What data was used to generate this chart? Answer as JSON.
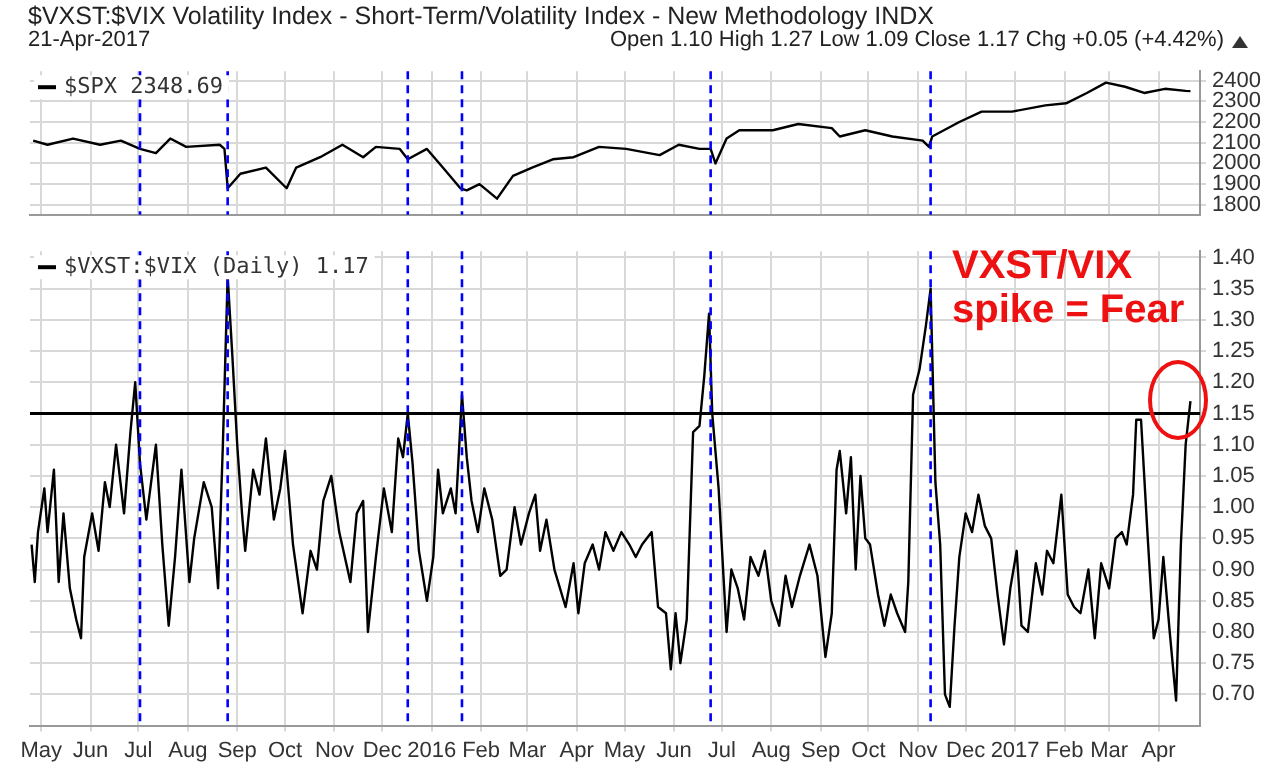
{
  "chart_data": [
    {
      "type": "line",
      "title": "$VXST:$VIX Volatility Index - Short-Term/Volatility Index - New Methodology INDX",
      "subtitle": "21-Apr-2017",
      "annotations": [
        "Open 1.10 High 1.27 Low 1.09 Close 1.17 Chg +0.05 (+4.42%)"
      ],
      "series": [
        {
          "name": "$SPX 2348.69",
          "color": "#000000",
          "x": [
            "2015-04-26",
            "2015-05-05",
            "2015-05-21",
            "2015-06-07",
            "2015-06-20",
            "2015-07-02",
            "2015-07-12",
            "2015-07-21",
            "2015-07-31",
            "2015-08-21",
            "2015-08-24",
            "2015-08-26",
            "2015-09-03",
            "2015-09-19",
            "2015-10-02",
            "2015-10-08",
            "2015-10-23",
            "2015-11-06",
            "2015-11-19",
            "2015-11-27",
            "2015-12-12",
            "2015-12-17",
            "2015-12-29",
            "2016-01-08",
            "2016-01-19",
            "2016-01-23",
            "2016-01-31",
            "2016-02-11",
            "2016-02-21",
            "2016-03-04",
            "2016-03-17",
            "2016-03-30",
            "2016-04-15",
            "2016-05-02",
            "2016-05-23",
            "2016-06-04",
            "2016-06-17",
            "2016-06-24",
            "2016-06-27",
            "2016-07-04",
            "2016-07-12",
            "2016-08-02",
            "2016-08-18",
            "2016-09-08",
            "2016-09-13",
            "2016-09-29",
            "2016-10-16",
            "2016-11-04",
            "2016-11-08",
            "2016-11-10",
            "2016-11-27",
            "2016-12-11",
            "2016-12-30",
            "2017-01-20",
            "2017-02-02",
            "2017-02-15",
            "2017-02-27",
            "2017-03-11",
            "2017-03-23",
            "2017-04-05",
            "2017-04-18",
            "2017-04-21"
          ],
          "values": [
            2110,
            2090,
            2120,
            2090,
            2110,
            2070,
            2050,
            2120,
            2080,
            2090,
            2070,
            1880,
            1950,
            1980,
            1880,
            1980,
            2030,
            2090,
            2030,
            2080,
            2070,
            2020,
            2070,
            1980,
            1880,
            1870,
            1900,
            1830,
            1940,
            1980,
            2020,
            2030,
            2080,
            2070,
            2040,
            2090,
            2070,
            2070,
            2000,
            2120,
            2160,
            2160,
            2190,
            2170,
            2130,
            2160,
            2130,
            2110,
            2080,
            2130,
            2200,
            2250,
            2250,
            2280,
            2290,
            2340,
            2390,
            2370,
            2340,
            2360,
            2350,
            2348.69
          ]
        }
      ],
      "xlim": [
        "2015-04-24",
        "2017-04-27"
      ],
      "xticks": [
        {
          "value": "2015-05-01",
          "label": null
        },
        {
          "value": "2015-06-01",
          "label": null
        },
        {
          "value": "2015-07-01",
          "label": null
        },
        {
          "value": "2015-08-01",
          "label": null
        },
        {
          "value": "2015-09-01",
          "label": null
        },
        {
          "value": "2015-10-01",
          "label": null
        },
        {
          "value": "2015-11-01",
          "label": null
        },
        {
          "value": "2015-12-01",
          "label": null
        },
        {
          "value": "2016-01-01",
          "label": null
        },
        {
          "value": "2016-02-01",
          "label": null
        },
        {
          "value": "2016-03-01",
          "label": null
        },
        {
          "value": "2016-04-01",
          "label": null
        },
        {
          "value": "2016-05-01",
          "label": null
        },
        {
          "value": "2016-06-01",
          "label": null
        },
        {
          "value": "2016-07-01",
          "label": null
        },
        {
          "value": "2016-08-01",
          "label": null
        },
        {
          "value": "2016-09-01",
          "label": null
        },
        {
          "value": "2016-10-01",
          "label": null
        },
        {
          "value": "2016-11-01",
          "label": null
        },
        {
          "value": "2016-12-01",
          "label": null
        },
        {
          "value": "2017-01-01",
          "label": null
        },
        {
          "value": "2017-02-01",
          "label": null
        },
        {
          "value": "2017-03-01",
          "label": null
        },
        {
          "value": "2017-04-01",
          "label": null
        }
      ],
      "ylim": [
        1752,
        2445
      ],
      "yticks": [
        1800,
        1900,
        2000,
        2100,
        2200,
        2300,
        2400
      ],
      "tick_labels": "y",
      "grid": true,
      "legend": "top left",
      "ref_lines": [
        {
          "axis": "x",
          "value": "2015-07-02",
          "color": "#0000ff",
          "line_style": "dashed"
        },
        {
          "axis": "x",
          "value": "2015-08-26",
          "color": "#0000ff",
          "line_style": "dashed"
        },
        {
          "axis": "x",
          "value": "2015-12-17",
          "color": "#0000ff",
          "line_style": "dashed"
        },
        {
          "axis": "x",
          "value": "2016-01-20",
          "color": "#0000ff",
          "line_style": "dashed"
        },
        {
          "axis": "x",
          "value": "2016-06-24",
          "color": "#0000ff",
          "line_style": "dashed"
        },
        {
          "axis": "x",
          "value": "2016-11-09",
          "color": "#0000ff",
          "line_style": "dashed"
        }
      ]
    },
    {
      "type": "line",
      "annotations": [
        "VXST/VIX spike = Fear"
      ],
      "series": [
        {
          "name": "$VXST:$VIX (Daily) 1.17",
          "color": "#000000",
          "x": [
            "2015-04-25",
            "2015-04-27",
            "2015-04-29",
            "2015-05-03",
            "2015-05-05",
            "2015-05-09",
            "2015-05-12",
            "2015-05-15",
            "2015-05-19",
            "2015-05-23",
            "2015-05-26",
            "2015-05-28",
            "2015-06-02",
            "2015-06-06",
            "2015-06-10",
            "2015-06-13",
            "2015-06-17",
            "2015-06-22",
            "2015-06-26",
            "2015-06-29",
            "2015-07-02",
            "2015-07-06",
            "2015-07-12",
            "2015-07-16",
            "2015-07-20",
            "2015-07-24",
            "2015-07-28",
            "2015-08-02",
            "2015-08-05",
            "2015-08-11",
            "2015-08-16",
            "2015-08-20",
            "2015-08-23",
            "2015-08-26",
            "2015-08-29",
            "2015-09-01",
            "2015-09-04",
            "2015-09-06",
            "2015-09-11",
            "2015-09-15",
            "2015-09-19",
            "2015-09-24",
            "2015-09-28",
            "2015-10-01",
            "2015-10-06",
            "2015-10-12",
            "2015-10-17",
            "2015-10-21",
            "2015-10-25",
            "2015-10-30",
            "2015-11-04",
            "2015-11-11",
            "2015-11-15",
            "2015-11-19",
            "2015-11-22",
            "2015-11-27",
            "2015-12-02",
            "2015-12-07",
            "2015-12-11",
            "2015-12-14",
            "2015-12-17",
            "2015-12-20",
            "2015-12-24",
            "2015-12-29",
            "2016-01-02",
            "2016-01-05",
            "2016-01-08",
            "2016-01-13",
            "2016-01-16",
            "2016-01-20",
            "2016-01-23",
            "2016-01-26",
            "2016-01-30",
            "2016-02-03",
            "2016-02-08",
            "2016-02-13",
            "2016-02-17",
            "2016-02-22",
            "2016-02-26",
            "2016-03-02",
            "2016-03-06",
            "2016-03-09",
            "2016-03-13",
            "2016-03-18",
            "2016-03-25",
            "2016-03-30",
            "2016-04-02",
            "2016-04-06",
            "2016-04-11",
            "2016-04-15",
            "2016-04-19",
            "2016-04-24",
            "2016-04-29",
            "2016-05-04",
            "2016-05-08",
            "2016-05-12",
            "2016-05-18",
            "2016-05-22",
            "2016-05-27",
            "2016-05-30",
            "2016-06-02",
            "2016-06-05",
            "2016-06-09",
            "2016-06-13",
            "2016-06-17",
            "2016-06-20",
            "2016-06-23",
            "2016-06-25",
            "2016-06-29",
            "2016-07-04",
            "2016-07-07",
            "2016-07-11",
            "2016-07-15",
            "2016-07-19",
            "2016-07-24",
            "2016-07-28",
            "2016-08-01",
            "2016-08-06",
            "2016-08-10",
            "2016-08-14",
            "2016-08-19",
            "2016-08-25",
            "2016-08-30",
            "2016-09-04",
            "2016-09-08",
            "2016-09-11",
            "2016-09-13",
            "2016-09-17",
            "2016-09-20",
            "2016-09-23",
            "2016-09-26",
            "2016-09-29",
            "2016-10-02",
            "2016-10-07",
            "2016-10-11",
            "2016-10-15",
            "2016-10-19",
            "2016-10-24",
            "2016-10-26",
            "2016-10-29",
            "2016-11-02",
            "2016-11-06",
            "2016-11-09",
            "2016-11-12",
            "2016-11-15",
            "2016-11-18",
            "2016-11-21",
            "2016-11-24",
            "2016-11-27",
            "2016-12-01",
            "2016-12-05",
            "2016-12-09",
            "2016-12-13",
            "2016-12-17",
            "2016-12-21",
            "2016-12-25",
            "2016-12-29",
            "2017-01-02",
            "2017-01-05",
            "2017-01-09",
            "2017-01-14",
            "2017-01-18",
            "2017-01-21",
            "2017-01-25",
            "2017-01-30",
            "2017-02-03",
            "2017-02-07",
            "2017-02-11",
            "2017-02-16",
            "2017-02-20",
            "2017-02-24",
            "2017-03-01",
            "2017-03-05",
            "2017-03-09",
            "2017-03-12",
            "2017-03-16",
            "2017-03-18",
            "2017-03-21",
            "2017-03-25",
            "2017-03-29",
            "2017-04-01",
            "2017-04-04",
            "2017-04-08",
            "2017-04-12",
            "2017-04-15",
            "2017-04-18",
            "2017-04-21"
          ],
          "values": [
            0.94,
            0.88,
            0.96,
            1.03,
            0.96,
            1.06,
            0.88,
            0.99,
            0.87,
            0.82,
            0.79,
            0.92,
            0.99,
            0.93,
            1.04,
            1.0,
            1.1,
            0.99,
            1.12,
            1.2,
            1.07,
            0.98,
            1.1,
            0.94,
            0.81,
            0.92,
            1.06,
            0.88,
            0.95,
            1.04,
            1.0,
            0.87,
            1.1,
            1.37,
            1.24,
            1.1,
            0.99,
            0.93,
            1.06,
            1.02,
            1.11,
            0.98,
            1.03,
            1.09,
            0.94,
            0.83,
            0.93,
            0.9,
            1.01,
            1.05,
            0.96,
            0.88,
            0.99,
            1.01,
            0.8,
            0.92,
            1.03,
            0.96,
            1.11,
            1.08,
            1.15,
            1.07,
            0.93,
            0.85,
            0.92,
            1.06,
            0.99,
            1.03,
            0.99,
            1.18,
            1.08,
            1.01,
            0.96,
            1.03,
            0.98,
            0.89,
            0.9,
            1.0,
            0.94,
            0.99,
            1.02,
            0.93,
            0.98,
            0.9,
            0.84,
            0.91,
            0.83,
            0.91,
            0.94,
            0.9,
            0.96,
            0.93,
            0.96,
            0.94,
            0.92,
            0.94,
            0.96,
            0.84,
            0.83,
            0.74,
            0.83,
            0.75,
            0.82,
            1.12,
            1.13,
            1.21,
            1.31,
            1.15,
            1.03,
            0.8,
            0.9,
            0.87,
            0.82,
            0.92,
            0.89,
            0.93,
            0.85,
            0.81,
            0.89,
            0.84,
            0.89,
            0.94,
            0.89,
            0.76,
            0.83,
            1.06,
            1.09,
            0.99,
            1.08,
            0.9,
            1.05,
            0.95,
            0.94,
            0.86,
            0.81,
            0.86,
            0.83,
            0.8,
            0.88,
            1.18,
            1.22,
            1.29,
            1.35,
            1.04,
            0.94,
            0.7,
            0.68,
            0.81,
            0.92,
            0.99,
            0.96,
            1.02,
            0.97,
            0.95,
            0.86,
            0.78,
            0.87,
            0.93,
            0.81,
            0.8,
            0.91,
            0.86,
            0.93,
            0.91,
            1.02,
            0.86,
            0.84,
            0.83,
            0.9,
            0.79,
            0.91,
            0.87,
            0.95,
            0.96,
            0.94,
            1.02,
            1.14,
            1.14,
            0.96,
            0.79,
            0.82,
            0.92,
            0.8,
            0.69,
            0.94,
            1.1,
            1.17
          ]
        }
      ],
      "xlim": [
        "2015-04-24",
        "2017-04-27"
      ],
      "xticks": [
        {
          "value": "2015-05-01",
          "label": "May"
        },
        {
          "value": "2015-06-01",
          "label": "Jun"
        },
        {
          "value": "2015-07-01",
          "label": "Jul"
        },
        {
          "value": "2015-08-01",
          "label": "Aug"
        },
        {
          "value": "2015-09-01",
          "label": "Sep"
        },
        {
          "value": "2015-10-01",
          "label": "Oct"
        },
        {
          "value": "2015-11-01",
          "label": "Nov"
        },
        {
          "value": "2015-12-01",
          "label": "Dec"
        },
        {
          "value": "2016-01-01",
          "label": "2016"
        },
        {
          "value": "2016-02-01",
          "label": "Feb"
        },
        {
          "value": "2016-03-01",
          "label": "Mar"
        },
        {
          "value": "2016-04-01",
          "label": "Apr"
        },
        {
          "value": "2016-05-01",
          "label": "May"
        },
        {
          "value": "2016-06-01",
          "label": "Jun"
        },
        {
          "value": "2016-07-01",
          "label": "Jul"
        },
        {
          "value": "2016-08-01",
          "label": "Aug"
        },
        {
          "value": "2016-09-01",
          "label": "Sep"
        },
        {
          "value": "2016-10-01",
          "label": "Oct"
        },
        {
          "value": "2016-11-01",
          "label": "Nov"
        },
        {
          "value": "2016-12-01",
          "label": "Dec"
        },
        {
          "value": "2017-01-01",
          "label": "2017"
        },
        {
          "value": "2017-02-01",
          "label": "Feb"
        },
        {
          "value": "2017-03-01",
          "label": "Mar"
        },
        {
          "value": "2017-04-01",
          "label": "Apr"
        }
      ],
      "ylim": [
        0.65,
        1.41
      ],
      "yticks": [
        {
          "value": 0.7,
          "label": "0.70"
        },
        {
          "value": 0.75,
          "label": "0.75"
        },
        {
          "value": 0.8,
          "label": "0.80"
        },
        {
          "value": 0.85,
          "label": "0.85"
        },
        {
          "value": 0.9,
          "label": "0.90"
        },
        {
          "value": 0.95,
          "label": "0.95"
        },
        {
          "value": 1.0,
          "label": "1.00"
        },
        {
          "value": 1.05,
          "label": "1.05"
        },
        {
          "value": 1.1,
          "label": "1.10"
        },
        {
          "value": 1.15,
          "label": "1.15"
        },
        {
          "value": 1.2,
          "label": "1.20"
        },
        {
          "value": 1.25,
          "label": "1.25"
        },
        {
          "value": 1.3,
          "label": "1.30"
        },
        {
          "value": 1.35,
          "label": "1.35"
        },
        {
          "value": 1.4,
          "label": "1.40"
        }
      ],
      "grid": true,
      "legend": "top left",
      "ref_lines": [
        {
          "axis": "x",
          "value": "2015-07-02",
          "color": "#0000ff",
          "line_style": "dashed"
        },
        {
          "axis": "x",
          "value": "2015-08-26",
          "color": "#0000ff",
          "line_style": "dashed"
        },
        {
          "axis": "x",
          "value": "2015-12-17",
          "color": "#0000ff",
          "line_style": "dashed"
        },
        {
          "axis": "x",
          "value": "2016-01-20",
          "color": "#0000ff",
          "line_style": "dashed"
        },
        {
          "axis": "x",
          "value": "2016-06-24",
          "color": "#0000ff",
          "line_style": "dashed"
        },
        {
          "axis": "x",
          "value": "2016-11-09",
          "color": "#0000ff",
          "line_style": "dashed"
        },
        {
          "axis": "y",
          "value": 1.15,
          "color": "#000000",
          "line_style": "solid"
        }
      ]
    }
  ]
}
